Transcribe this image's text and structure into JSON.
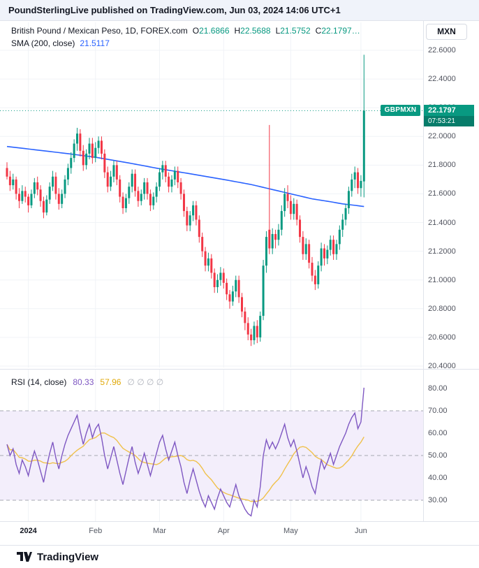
{
  "header": {
    "text": "PoundSterlingLive published on TradingView.com, Jun 03, 2024 14:06 UTC+1"
  },
  "footer": {
    "brand": "TradingView"
  },
  "axis": {
    "currency": "MXN",
    "price_ticks": [
      22.6,
      22.4,
      22.2,
      22.0,
      21.8,
      21.6,
      21.4,
      21.2,
      21.0,
      20.8,
      20.6,
      20.4
    ],
    "rsi_ticks": [
      80,
      70,
      60,
      50,
      40,
      30
    ]
  },
  "price_pane": {
    "legend": {
      "symbol": "British Pound / Mexican Peso, 1D, FOREX.com",
      "ohlc": [
        {
          "k": "O",
          "v": "21.6866"
        },
        {
          "k": "H",
          "v": "22.5688"
        },
        {
          "k": "L",
          "v": "21.5752"
        },
        {
          "k": "C",
          "v": "22.1797…"
        }
      ]
    },
    "sma_legend": {
      "label": "SMA (200, close)",
      "value": "21.5117"
    },
    "badge": {
      "symbol": "GBPMXN",
      "price": "22.1797",
      "countdown": "07:53:21"
    }
  },
  "rsi_pane": {
    "legend": {
      "label": "RSI (14, close)",
      "value": "80.33",
      "ma_value": "57.96",
      "hidden_plots": "∅  ∅  ∅  ∅"
    }
  },
  "colors": {
    "up": "#089981",
    "down": "#f23645",
    "sma": "#2962ff",
    "rsi": "#7e57c2",
    "rsi_ma": "#f0c14b",
    "rsi_band": "#f3eefb",
    "band_line": "#a5a8b1",
    "grid": "#f0f3f7",
    "countdown_bg": "#077c6a",
    "accent_text": "#131722",
    "axis_text": "#50535e"
  },
  "chart_data": [
    {
      "type": "candlestick",
      "title": "British Pound / Mexican Peso, 1D, FOREX.com",
      "symbol": "GBPMXN",
      "timeframe": "1D",
      "source": "FOREX.com",
      "ylim": [
        20.4,
        22.6
      ],
      "current_price": 22.1797,
      "last_ohlc": {
        "o": 21.6866,
        "h": 22.5688,
        "l": 21.5752,
        "c": 22.1797
      },
      "month_ticks": [
        {
          "label": "2024",
          "index": 7
        },
        {
          "label": "Feb",
          "index": 29
        },
        {
          "label": "Mar",
          "index": 50
        },
        {
          "label": "Apr",
          "index": 71
        },
        {
          "label": "May",
          "index": 93
        },
        {
          "label": "Jun",
          "index": 116
        }
      ],
      "sma200": {
        "period": 200,
        "value_last": 21.5117,
        "points": [
          [
            0,
            21.93
          ],
          [
            10,
            21.905
          ],
          [
            20,
            21.88
          ],
          [
            29,
            21.855
          ],
          [
            40,
            21.815
          ],
          [
            50,
            21.775
          ],
          [
            60,
            21.74
          ],
          [
            71,
            21.7
          ],
          [
            80,
            21.665
          ],
          [
            86,
            21.635
          ],
          [
            93,
            21.6
          ],
          [
            100,
            21.565
          ],
          [
            106,
            21.545
          ],
          [
            110,
            21.53
          ],
          [
            114,
            21.52
          ],
          [
            117,
            21.5117
          ]
        ]
      },
      "candles": [
        [
          21.78,
          21.82,
          21.7,
          21.72
        ],
        [
          21.72,
          21.76,
          21.62,
          21.66
        ],
        [
          21.66,
          21.74,
          21.63,
          21.7
        ],
        [
          21.7,
          21.72,
          21.56,
          21.6
        ],
        [
          21.6,
          21.64,
          21.5,
          21.55
        ],
        [
          21.55,
          21.66,
          21.53,
          21.62
        ],
        [
          21.62,
          21.65,
          21.54,
          21.58
        ],
        [
          21.58,
          21.6,
          21.47,
          21.52
        ],
        [
          21.52,
          21.63,
          21.5,
          21.6
        ],
        [
          21.6,
          21.71,
          21.57,
          21.68
        ],
        [
          21.68,
          21.72,
          21.59,
          21.63
        ],
        [
          21.63,
          21.66,
          21.51,
          21.55
        ],
        [
          21.55,
          21.58,
          21.43,
          21.47
        ],
        [
          21.47,
          21.59,
          21.45,
          21.56
        ],
        [
          21.56,
          21.68,
          21.53,
          21.65
        ],
        [
          21.65,
          21.76,
          21.62,
          21.72
        ],
        [
          21.72,
          21.75,
          21.56,
          21.6
        ],
        [
          21.6,
          21.64,
          21.49,
          21.53
        ],
        [
          21.53,
          21.63,
          21.5,
          21.6
        ],
        [
          21.6,
          21.73,
          21.57,
          21.7
        ],
        [
          21.7,
          21.81,
          21.66,
          21.78
        ],
        [
          21.78,
          21.89,
          21.74,
          21.85
        ],
        [
          21.85,
          21.98,
          21.82,
          21.95
        ],
        [
          21.95,
          22.06,
          21.9,
          22.02
        ],
        [
          22.02,
          22.05,
          21.86,
          21.9
        ],
        [
          21.9,
          21.94,
          21.76,
          21.8
        ],
        [
          21.8,
          21.91,
          21.77,
          21.88
        ],
        [
          21.88,
          21.99,
          21.84,
          21.95
        ],
        [
          21.95,
          21.99,
          21.81,
          21.85
        ],
        [
          21.85,
          21.96,
          21.82,
          21.92
        ],
        [
          21.92,
          22.0,
          21.88,
          21.97
        ],
        [
          21.97,
          22.0,
          21.84,
          21.88
        ],
        [
          21.88,
          21.91,
          21.71,
          21.75
        ],
        [
          21.75,
          21.79,
          21.61,
          21.65
        ],
        [
          21.65,
          21.76,
          21.62,
          21.72
        ],
        [
          21.72,
          21.83,
          21.68,
          21.8
        ],
        [
          21.8,
          21.83,
          21.66,
          21.7
        ],
        [
          21.7,
          21.73,
          21.54,
          21.58
        ],
        [
          21.58,
          21.61,
          21.46,
          21.5
        ],
        [
          21.5,
          21.6,
          21.47,
          21.57
        ],
        [
          21.57,
          21.68,
          21.53,
          21.65
        ],
        [
          21.65,
          21.77,
          21.61,
          21.74
        ],
        [
          21.74,
          21.77,
          21.58,
          21.62
        ],
        [
          21.62,
          21.65,
          21.51,
          21.55
        ],
        [
          21.55,
          21.63,
          21.52,
          21.6
        ],
        [
          21.6,
          21.71,
          21.56,
          21.68
        ],
        [
          21.68,
          21.71,
          21.56,
          21.6
        ],
        [
          21.6,
          21.63,
          21.48,
          21.52
        ],
        [
          21.52,
          21.61,
          21.49,
          21.58
        ],
        [
          21.58,
          21.68,
          21.54,
          21.65
        ],
        [
          21.65,
          21.78,
          21.62,
          21.75
        ],
        [
          21.75,
          21.83,
          21.7,
          21.8
        ],
        [
          21.8,
          21.83,
          21.68,
          21.72
        ],
        [
          21.72,
          21.75,
          21.61,
          21.65
        ],
        [
          21.65,
          21.73,
          21.61,
          21.7
        ],
        [
          21.7,
          21.79,
          21.66,
          21.76
        ],
        [
          21.76,
          21.79,
          21.64,
          21.68
        ],
        [
          21.68,
          21.71,
          21.56,
          21.6
        ],
        [
          21.6,
          21.63,
          21.44,
          21.48
        ],
        [
          21.48,
          21.51,
          21.34,
          21.38
        ],
        [
          21.38,
          21.48,
          21.34,
          21.45
        ],
        [
          21.45,
          21.55,
          21.41,
          21.52
        ],
        [
          21.52,
          21.55,
          21.38,
          21.42
        ],
        [
          21.42,
          21.45,
          21.26,
          21.3
        ],
        [
          21.3,
          21.33,
          21.16,
          21.2
        ],
        [
          21.2,
          21.23,
          21.06,
          21.1
        ],
        [
          21.1,
          21.19,
          21.06,
          21.15
        ],
        [
          21.15,
          21.18,
          21.01,
          21.05
        ],
        [
          21.05,
          21.08,
          20.91,
          20.95
        ],
        [
          20.95,
          21.04,
          20.91,
          21.0
        ],
        [
          21.0,
          21.09,
          20.96,
          21.05
        ],
        [
          21.05,
          21.08,
          20.94,
          20.98
        ],
        [
          20.98,
          21.01,
          20.86,
          20.9
        ],
        [
          20.9,
          20.93,
          20.8,
          20.85
        ],
        [
          20.85,
          20.96,
          20.82,
          20.92
        ],
        [
          20.92,
          21.03,
          20.88,
          21.0
        ],
        [
          21.0,
          21.03,
          20.84,
          20.88
        ],
        [
          20.88,
          20.91,
          20.74,
          20.78
        ],
        [
          20.78,
          20.81,
          20.65,
          20.7
        ],
        [
          20.7,
          20.74,
          20.58,
          20.62
        ],
        [
          20.62,
          20.66,
          20.54,
          20.58
        ],
        [
          20.58,
          20.71,
          20.55,
          20.68
        ],
        [
          20.68,
          20.72,
          20.56,
          20.6
        ],
        [
          20.6,
          20.78,
          20.57,
          20.75
        ],
        [
          20.75,
          21.14,
          20.72,
          21.1
        ],
        [
          21.1,
          21.34,
          21.05,
          21.3
        ],
        [
          21.35,
          22.08,
          21.18,
          21.22
        ],
        [
          21.22,
          21.36,
          21.18,
          21.32
        ],
        [
          21.32,
          21.35,
          21.22,
          21.28
        ],
        [
          21.28,
          21.39,
          21.24,
          21.35
        ],
        [
          21.35,
          21.52,
          21.31,
          21.48
        ],
        [
          21.48,
          21.64,
          21.44,
          21.6
        ],
        [
          21.6,
          21.66,
          21.5,
          21.55
        ],
        [
          21.55,
          21.59,
          21.42,
          21.46
        ],
        [
          21.46,
          21.57,
          21.42,
          21.53
        ],
        [
          21.53,
          21.56,
          21.38,
          21.42
        ],
        [
          21.42,
          21.45,
          21.26,
          21.3
        ],
        [
          21.3,
          21.34,
          21.14,
          21.18
        ],
        [
          21.18,
          21.29,
          21.14,
          21.25
        ],
        [
          21.25,
          21.28,
          21.08,
          21.12
        ],
        [
          21.12,
          21.16,
          20.99,
          21.03
        ],
        [
          21.03,
          21.07,
          20.93,
          20.97
        ],
        [
          20.97,
          21.13,
          20.94,
          21.1
        ],
        [
          21.1,
          21.26,
          21.06,
          21.22
        ],
        [
          21.22,
          21.25,
          21.1,
          21.15
        ],
        [
          21.15,
          21.24,
          21.11,
          21.21
        ],
        [
          21.21,
          21.31,
          21.17,
          21.28
        ],
        [
          21.28,
          21.31,
          21.14,
          21.18
        ],
        [
          21.18,
          21.28,
          21.14,
          21.25
        ],
        [
          21.25,
          21.38,
          21.21,
          21.35
        ],
        [
          21.35,
          21.46,
          21.3,
          21.42
        ],
        [
          21.42,
          21.53,
          21.38,
          21.5
        ],
        [
          21.5,
          21.65,
          21.46,
          21.62
        ],
        [
          21.62,
          21.74,
          21.58,
          21.7
        ],
        [
          21.7,
          21.79,
          21.64,
          21.75
        ],
        [
          21.75,
          21.78,
          21.6,
          21.64
        ],
        [
          21.64,
          21.73,
          21.58,
          21.69
        ],
        [
          21.6866,
          22.5688,
          21.5752,
          22.1797
        ]
      ]
    },
    {
      "type": "line",
      "title": "RSI (14, close)",
      "panel": "lower",
      "overbought": 70,
      "oversold": 30,
      "midline": 50,
      "visible_ticks": [
        80,
        70,
        60,
        50,
        40,
        30
      ],
      "series": [
        {
          "name": "RSI",
          "period": 14,
          "last": 80.33,
          "values": [
            55,
            50,
            53,
            46,
            42,
            48,
            45,
            41,
            47,
            52,
            48,
            43,
            38,
            45,
            51,
            56,
            49,
            44,
            50,
            55,
            59,
            62,
            65,
            68,
            61,
            55,
            60,
            64,
            58,
            62,
            64,
            58,
            50,
            44,
            49,
            54,
            48,
            42,
            37,
            43,
            49,
            54,
            47,
            42,
            46,
            51,
            46,
            41,
            46,
            51,
            56,
            59,
            53,
            48,
            52,
            56,
            50,
            45,
            38,
            33,
            39,
            44,
            39,
            34,
            30,
            27,
            32,
            29,
            26,
            31,
            35,
            32,
            29,
            27,
            32,
            37,
            32,
            29,
            26,
            24,
            23,
            30,
            27,
            36,
            50,
            57,
            53,
            56,
            53,
            56,
            60,
            64,
            58,
            54,
            57,
            52,
            46,
            40,
            45,
            41,
            36,
            33,
            41,
            48,
            44,
            47,
            51,
            46,
            50,
            54,
            57,
            60,
            64,
            67,
            69,
            62,
            65,
            80.33
          ]
        },
        {
          "name": "RSI-based MA",
          "type": "sma_of_rsi",
          "period": 14,
          "last": 57.96,
          "derived": true
        }
      ]
    }
  ]
}
